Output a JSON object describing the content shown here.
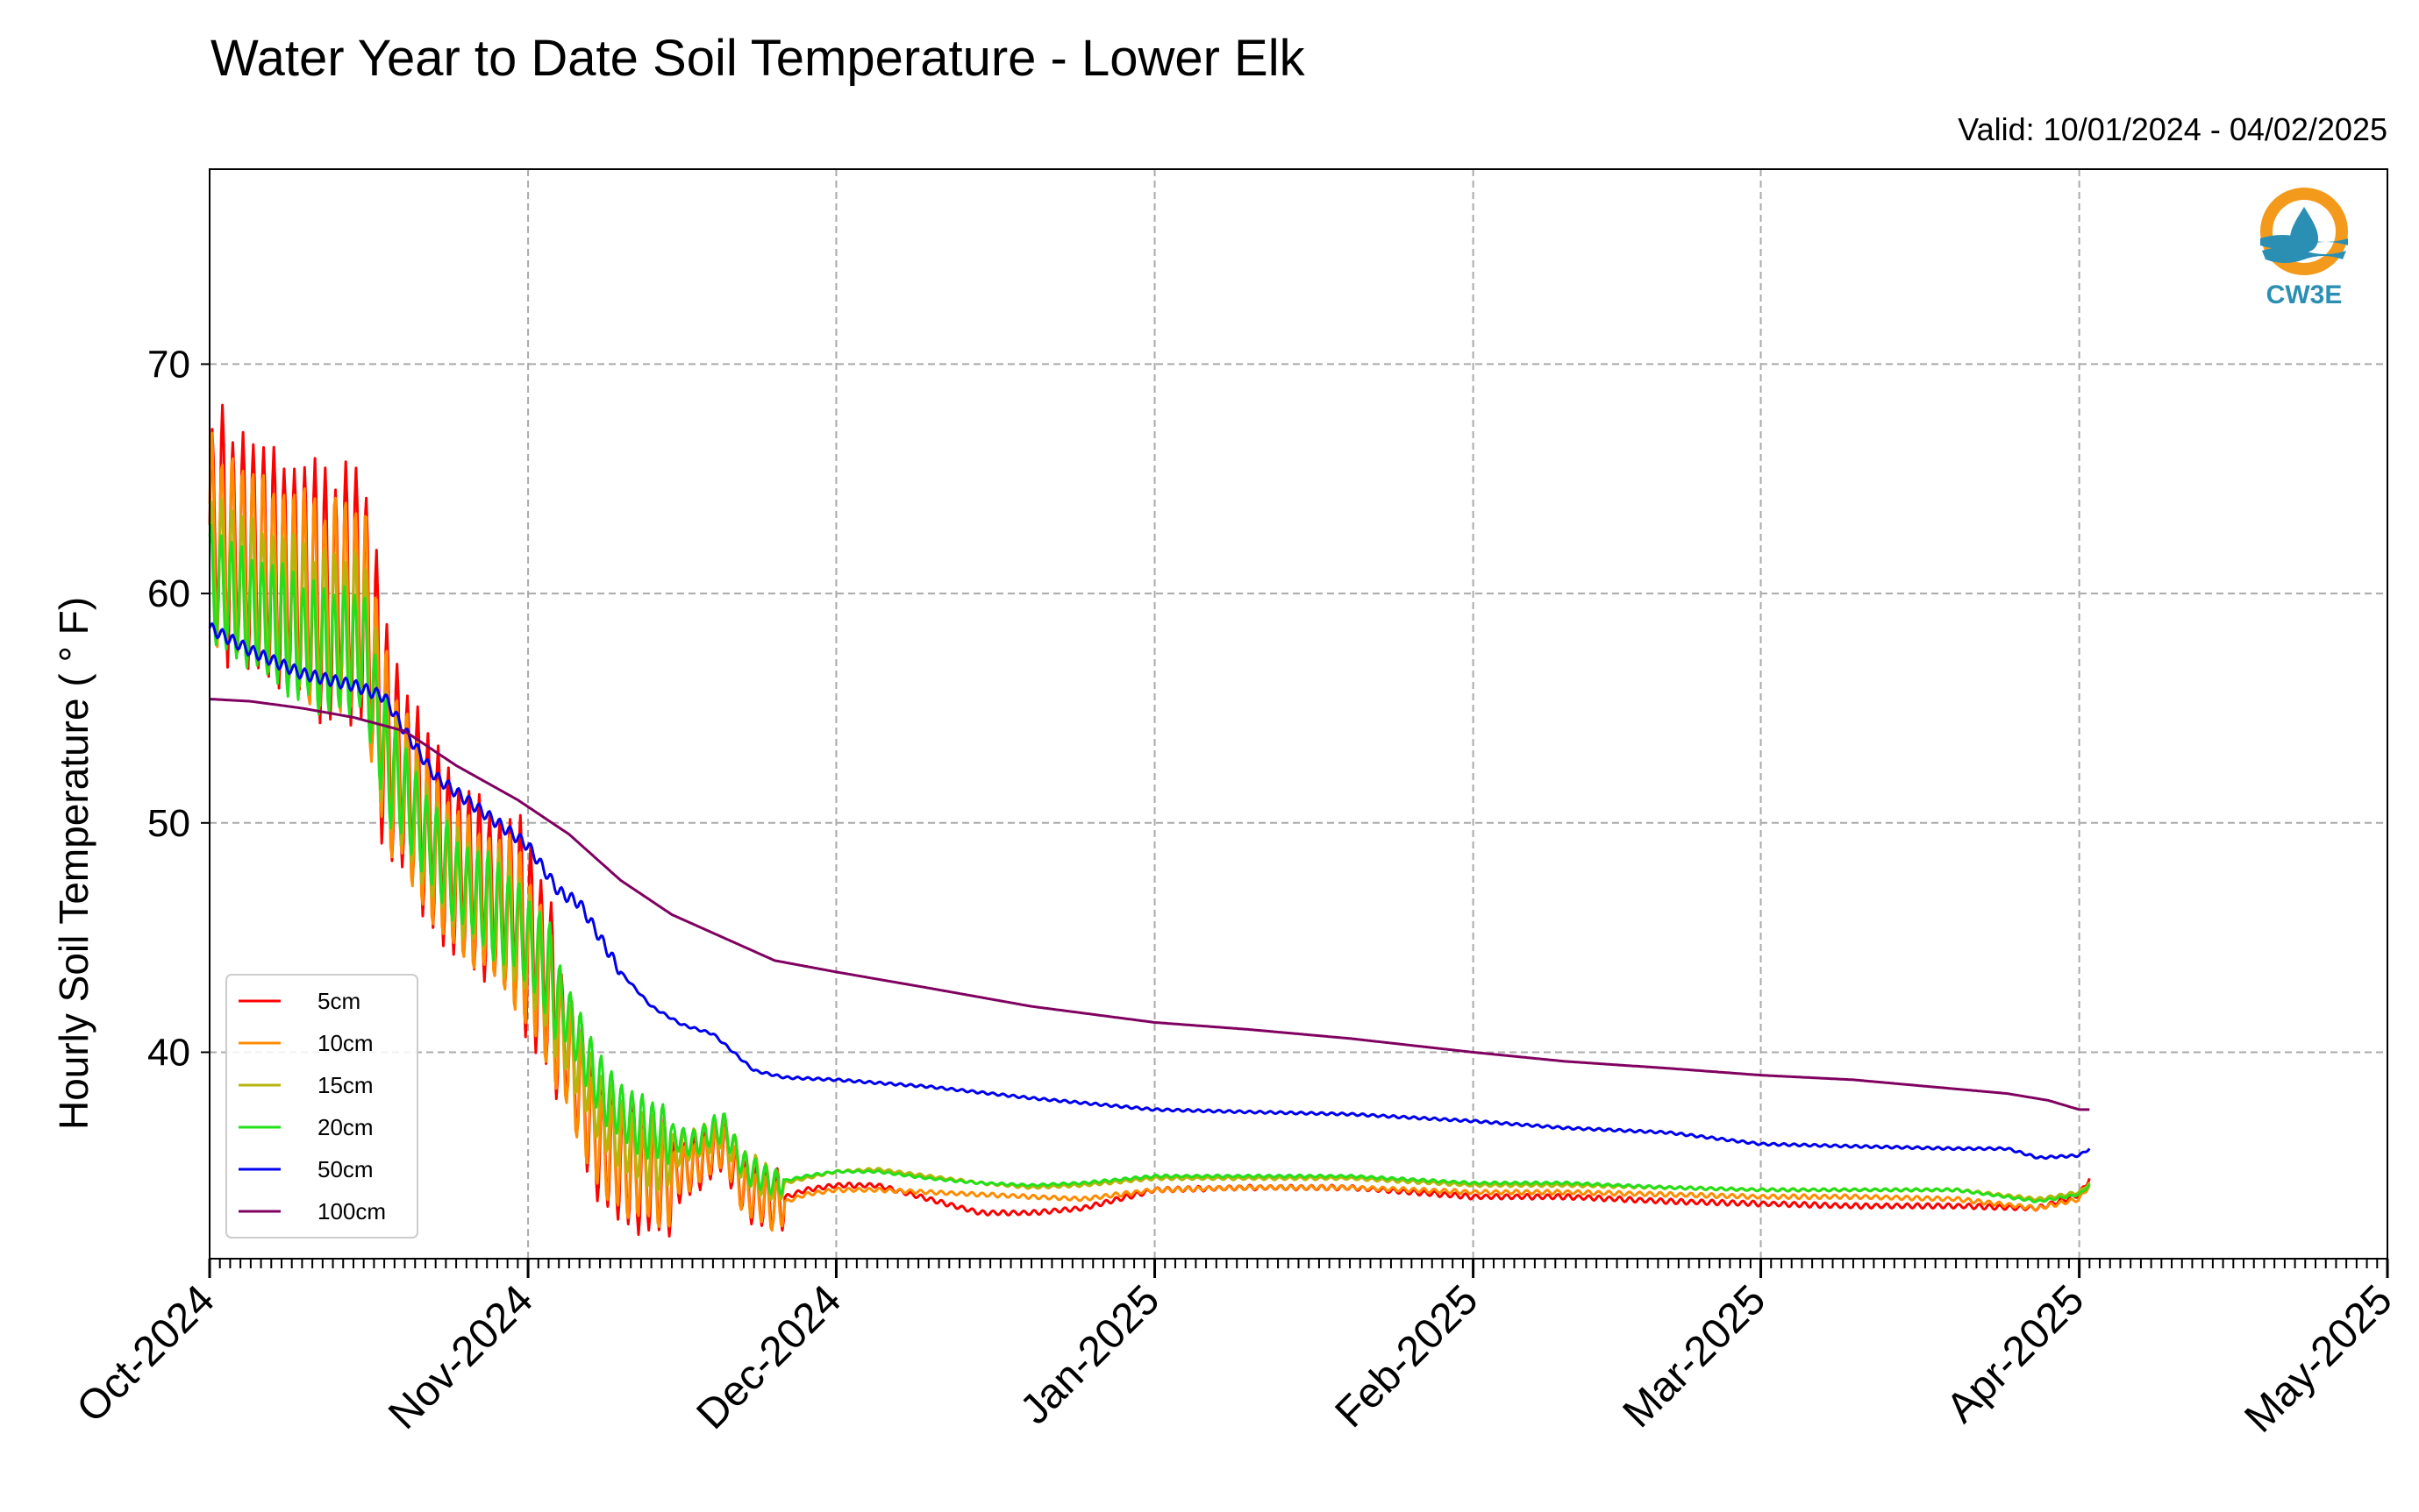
{
  "chart_data": {
    "type": "line",
    "title": "Water Year to Date Soil Temperature - Lower Elk",
    "subtitle": "Valid: 10/01/2024 - 04/02/2025",
    "ylabel": "Hourly Soil Temperature ( ° F)",
    "xlabel": "",
    "xlim": [
      "2024-10-01",
      "2025-05-01"
    ],
    "ylim": [
      31,
      78.5
    ],
    "yticks": [
      40,
      50,
      60,
      70
    ],
    "xticks": [
      "2024-10-01",
      "2024-11-01",
      "2024-12-01",
      "2025-01-01",
      "2025-02-01",
      "2025-03-01",
      "2025-04-01",
      "2025-05-01"
    ],
    "xticklabels": [
      "Oct-2024",
      "Nov-2024",
      "Dec-2024",
      "Jan-2025",
      "Feb-2025",
      "Mar-2025",
      "Apr-2025",
      "May-2025"
    ],
    "grid": true,
    "legend_position": "bottom-left",
    "series": [
      {
        "name": "5cm",
        "color": "#ff0000",
        "x": [
          "2024-10-01",
          "2024-10-04",
          "2024-10-08",
          "2024-10-12",
          "2024-10-16",
          "2024-10-18",
          "2024-10-22",
          "2024-10-25",
          "2024-10-28",
          "2024-10-31",
          "2024-11-03",
          "2024-11-05",
          "2024-11-08",
          "2024-11-11",
          "2024-11-14",
          "2024-11-17",
          "2024-11-20",
          "2024-11-22",
          "2024-11-25",
          "2024-11-28",
          "2024-12-01",
          "2024-12-05",
          "2024-12-10",
          "2024-12-15",
          "2024-12-20",
          "2024-12-25",
          "2025-01-01",
          "2025-01-10",
          "2025-01-20",
          "2025-02-01",
          "2025-02-10",
          "2025-02-20",
          "2025-03-01",
          "2025-03-10",
          "2025-03-20",
          "2025-03-28",
          "2025-04-01",
          "2025-04-02"
        ],
        "values": [
          63,
          62,
          61,
          60,
          60,
          54,
          50,
          48,
          47,
          46,
          43,
          40,
          36,
          35,
          34.5,
          35,
          36,
          34,
          33.5,
          34,
          34.2,
          34.2,
          33.6,
          33,
          33,
          33.2,
          34,
          34.1,
          34.1,
          33.7,
          33.7,
          33.5,
          33.4,
          33.3,
          33.3,
          33.2,
          33.8,
          34.5
        ]
      },
      {
        "name": "10cm",
        "color": "#ff8c00",
        "x": [
          "2024-10-01",
          "2024-10-04",
          "2024-10-08",
          "2024-10-12",
          "2024-10-16",
          "2024-10-18",
          "2024-10-22",
          "2024-10-25",
          "2024-10-28",
          "2024-10-31",
          "2024-11-03",
          "2024-11-05",
          "2024-11-08",
          "2024-11-11",
          "2024-11-14",
          "2024-11-17",
          "2024-11-20",
          "2024-11-22",
          "2024-11-25",
          "2024-11-28",
          "2024-12-01",
          "2024-12-05",
          "2024-12-10",
          "2024-12-15",
          "2024-12-20",
          "2024-12-25",
          "2025-01-01",
          "2025-01-10",
          "2025-01-20",
          "2025-02-01",
          "2025-02-10",
          "2025-02-20",
          "2025-03-01",
          "2025-03-10",
          "2025-03-20",
          "2025-03-28",
          "2025-04-01",
          "2025-04-02"
        ],
        "values": [
          62.5,
          61.5,
          60.5,
          59.5,
          59.5,
          53.5,
          49.5,
          47.5,
          46.5,
          45.5,
          42.5,
          39.5,
          36,
          35,
          34.5,
          35,
          36,
          34,
          33.3,
          33.8,
          34,
          34,
          33.9,
          33.8,
          33.7,
          33.6,
          34,
          34.1,
          34.1,
          33.9,
          33.9,
          33.8,
          33.7,
          33.7,
          33.6,
          33.2,
          33.6,
          34.2
        ]
      },
      {
        "name": "15cm",
        "color": "#b5b50c",
        "x": [
          "2024-10-01",
          "2024-10-04",
          "2024-10-08",
          "2024-10-12",
          "2024-10-16",
          "2024-10-18",
          "2024-10-22",
          "2024-10-25",
          "2024-10-28",
          "2024-10-31",
          "2024-11-03",
          "2024-11-05",
          "2024-11-08",
          "2024-11-11",
          "2024-11-14",
          "2024-11-17",
          "2024-11-20",
          "2024-11-22",
          "2024-11-25",
          "2024-11-28",
          "2024-12-01",
          "2024-12-05",
          "2024-12-10",
          "2024-12-15",
          "2024-12-20",
          "2024-12-25",
          "2025-01-01",
          "2025-01-10",
          "2025-01-20",
          "2025-02-01",
          "2025-02-10",
          "2025-02-20",
          "2025-03-01",
          "2025-03-10",
          "2025-03-20",
          "2025-03-28",
          "2025-04-01",
          "2025-04-02"
        ],
        "values": [
          61.5,
          60.5,
          59.5,
          58.5,
          58.5,
          53,
          49.5,
          47.5,
          46.5,
          45.5,
          43,
          40.5,
          37.5,
          36,
          35.5,
          36,
          36.5,
          35,
          34.2,
          34.5,
          34.8,
          34.9,
          34.6,
          34.3,
          34.1,
          34.2,
          34.5,
          34.5,
          34.5,
          34.2,
          34.2,
          34.1,
          34,
          34,
          34,
          33.6,
          33.9,
          34.3
        ]
      },
      {
        "name": "20cm",
        "color": "#22e01a",
        "x": [
          "2024-10-01",
          "2024-10-04",
          "2024-10-08",
          "2024-10-12",
          "2024-10-16",
          "2024-10-18",
          "2024-10-22",
          "2024-10-25",
          "2024-10-28",
          "2024-10-31",
          "2024-11-03",
          "2024-11-05",
          "2024-11-08",
          "2024-11-11",
          "2024-11-14",
          "2024-11-17",
          "2024-11-20",
          "2024-11-22",
          "2024-11-25",
          "2024-11-28",
          "2024-12-01",
          "2024-12-05",
          "2024-12-10",
          "2024-12-15",
          "2024-12-20",
          "2024-12-25",
          "2025-01-01",
          "2025-01-10",
          "2025-01-20",
          "2025-02-01",
          "2025-02-10",
          "2025-02-20",
          "2025-03-01",
          "2025-03-10",
          "2025-03-20",
          "2025-03-28",
          "2025-04-01",
          "2025-04-02"
        ],
        "values": [
          60.5,
          59.5,
          58.5,
          57.5,
          57.5,
          53,
          49.5,
          47.5,
          46.5,
          45.5,
          43.5,
          41.5,
          38.5,
          37,
          36.5,
          36,
          36.8,
          35,
          34.3,
          34.6,
          34.8,
          34.8,
          34.5,
          34.3,
          34.2,
          34.3,
          34.6,
          34.6,
          34.6,
          34.3,
          34.3,
          34.1,
          34,
          34,
          34,
          33.5,
          33.8,
          34.2
        ]
      },
      {
        "name": "50cm",
        "color": "#0000ee",
        "x": [
          "2024-10-01",
          "2024-10-05",
          "2024-10-10",
          "2024-10-15",
          "2024-10-18",
          "2024-10-20",
          "2024-10-23",
          "2024-10-26",
          "2024-10-29",
          "2024-11-01",
          "2024-11-04",
          "2024-11-06",
          "2024-11-08",
          "2024-11-10",
          "2024-11-13",
          "2024-11-16",
          "2024-11-19",
          "2024-11-21",
          "2024-11-23",
          "2024-11-26",
          "2024-12-01",
          "2024-12-10",
          "2024-12-20",
          "2025-01-01",
          "2025-01-10",
          "2025-01-20",
          "2025-02-01",
          "2025-02-10",
          "2025-02-20",
          "2025-03-01",
          "2025-03-10",
          "2025-03-20",
          "2025-03-25",
          "2025-03-28",
          "2025-04-01",
          "2025-04-02"
        ],
        "values": [
          58.5,
          57.5,
          56.5,
          56,
          55.5,
          54,
          52,
          51,
          50,
          49,
          47,
          46.5,
          45,
          43.5,
          42,
          41.2,
          40.8,
          40,
          39.2,
          38.9,
          38.8,
          38.5,
          38,
          37.5,
          37.4,
          37.3,
          37,
          36.7,
          36.5,
          36,
          35.9,
          35.8,
          35.8,
          35.4,
          35.5,
          35.8
        ]
      },
      {
        "name": "100cm",
        "color": "#800060",
        "x": [
          "2024-10-01",
          "2024-10-05",
          "2024-10-10",
          "2024-10-15",
          "2024-10-20",
          "2024-10-25",
          "2024-10-31",
          "2024-11-05",
          "2024-11-10",
          "2024-11-15",
          "2024-11-20",
          "2024-11-25",
          "2024-12-01",
          "2024-12-10",
          "2024-12-20",
          "2025-01-01",
          "2025-01-10",
          "2025-01-20",
          "2025-02-01",
          "2025-02-10",
          "2025-02-20",
          "2025-03-01",
          "2025-03-10",
          "2025-03-20",
          "2025-03-25",
          "2025-03-29",
          "2025-04-01",
          "2025-04-02"
        ],
        "values": [
          55.4,
          55.3,
          55,
          54.6,
          54,
          52.5,
          51,
          49.5,
          47.5,
          46,
          45,
          44,
          43.5,
          42.8,
          42,
          41.3,
          41,
          40.6,
          40,
          39.6,
          39.3,
          39,
          38.8,
          38.4,
          38.2,
          37.9,
          37.5,
          37.5
        ]
      }
    ]
  },
  "logo": {
    "text": "CW3E"
  }
}
